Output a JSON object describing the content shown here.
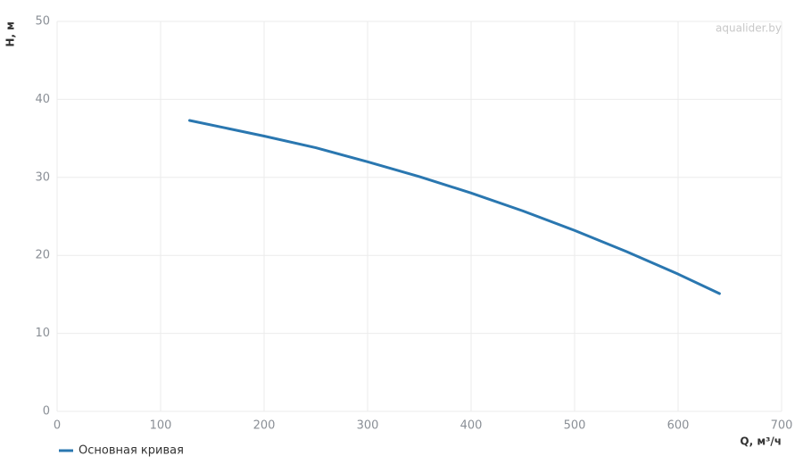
{
  "chart_data": {
    "type": "line",
    "watermark": "aqualider.by",
    "x_label": "Q, м³/ч",
    "y_label": "H, м",
    "x": [
      128,
      200,
      250,
      300,
      350,
      400,
      450,
      500,
      550,
      600,
      640
    ],
    "series": [
      {
        "name": "Основная кривая",
        "color": "#2a77b0",
        "values": [
          37.3,
          35.3,
          33.8,
          32.0,
          30.1,
          28.0,
          25.7,
          23.2,
          20.5,
          17.6,
          15.1
        ]
      }
    ],
    "xlim": [
      0,
      700
    ],
    "xticks": [
      0,
      100,
      200,
      300,
      400,
      500,
      600,
      700
    ],
    "ylim": [
      0,
      50
    ],
    "yticks": [
      0,
      10,
      20,
      30,
      40,
      50
    ],
    "grid": true,
    "legend": "bottom-left"
  }
}
